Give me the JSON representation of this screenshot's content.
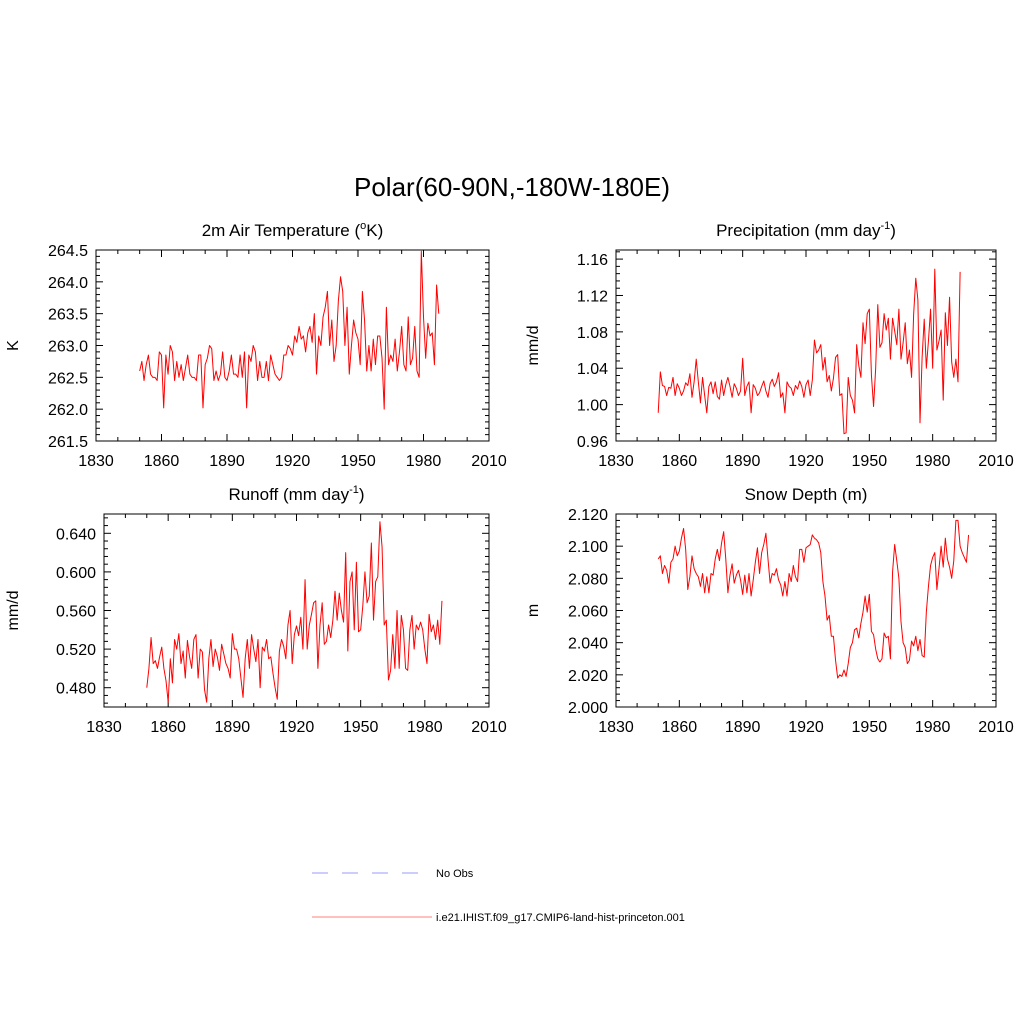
{
  "figure": {
    "title": "Polar(60-90N,-180W-180E)"
  },
  "legend": {
    "items": [
      {
        "label": "No Obs",
        "color": "#9999ff",
        "dash": "dashed"
      },
      {
        "label": "i.e21.IHIST.f09_g17.CMIP6-land-hist-princeton.001",
        "color": "#ff8080",
        "dash": "solid"
      }
    ]
  },
  "chart_data": [
    {
      "type": "line",
      "title": "2m Air Temperature (",
      "title_sup": "o",
      "title_tail": "K)",
      "ylabel": "K",
      "xlim": [
        1830,
        2010
      ],
      "ylim": [
        261.5,
        264.5
      ],
      "xticks": [
        1830,
        1860,
        1890,
        1920,
        1950,
        1980,
        2010
      ],
      "yticks": [
        261.5,
        262.0,
        262.5,
        263.0,
        263.5,
        264.0,
        264.5
      ],
      "ytick_labels": [
        "261.5",
        "262.0",
        "262.5",
        "263.0",
        "263.5",
        "264.0",
        "264.5"
      ],
      "grid": false,
      "series": [
        {
          "color": "#ff0000",
          "x_start": 1850,
          "x_step": 1,
          "values": [
            262.6,
            262.75,
            262.45,
            262.7,
            262.85,
            262.55,
            262.5,
            262.5,
            262.45,
            262.9,
            262.85,
            262.02,
            262.85,
            262.55,
            263.0,
            262.9,
            262.45,
            262.75,
            262.5,
            262.7,
            262.45,
            262.65,
            262.85,
            262.55,
            262.5,
            262.5,
            262.45,
            262.85,
            262.85,
            262.02,
            262.7,
            262.8,
            263.0,
            262.95,
            262.45,
            262.6,
            262.45,
            262.55,
            262.9,
            262.5,
            262.45,
            262.6,
            262.85,
            262.55,
            262.55,
            262.5,
            262.85,
            262.5,
            262.9,
            262.02,
            262.85,
            262.75,
            263.0,
            262.9,
            262.45,
            262.75,
            262.5,
            262.5,
            262.75,
            262.45,
            262.85,
            262.7,
            262.55,
            262.5,
            262.45,
            262.5,
            262.85,
            262.85,
            263.0,
            262.95,
            262.85,
            263.15,
            263.05,
            263.3,
            263.1,
            263.15,
            262.9,
            263.2,
            263.3,
            263.05,
            263.5,
            262.55,
            263.15,
            263.0,
            263.45,
            263.6,
            263.85,
            263.0,
            263.4,
            262.75,
            263.0,
            263.7,
            264.08,
            263.85,
            263.0,
            263.6,
            262.55,
            263.0,
            263.4,
            263.2,
            263.1,
            262.7,
            263.85,
            263.4,
            262.6,
            263.0,
            262.6,
            263.1,
            262.7,
            263.15,
            263.15,
            262.8,
            262.0,
            263.6,
            262.7,
            262.85,
            262.75,
            263.1,
            262.6,
            262.9,
            263.3,
            262.7,
            262.6,
            263.45,
            262.7,
            262.8,
            263.3,
            262.6,
            262.5,
            264.48,
            263.45,
            262.8,
            263.35,
            263.15,
            263.2,
            262.7,
            263.95,
            263.5
          ]
        }
      ]
    },
    {
      "type": "line",
      "title": "Precipitation (mm day",
      "title_sup": "-1",
      "title_tail": ")",
      "ylabel": "mm/d",
      "xlim": [
        1830,
        2010
      ],
      "ylim": [
        0.96,
        1.17
      ],
      "xticks": [
        1830,
        1860,
        1890,
        1920,
        1950,
        1980,
        2010
      ],
      "yticks": [
        0.96,
        1.0,
        1.04,
        1.08,
        1.12,
        1.16
      ],
      "ytick_labels": [
        "0.96",
        "1.00",
        "1.04",
        "1.08",
        "1.12",
        "1.16"
      ],
      "grid": false,
      "series": [
        {
          "color": "#ff0000",
          "x_start": 1850,
          "x_step": 1,
          "values": [
            0.991,
            1.036,
            1.021,
            1.02,
            1.01,
            1.019,
            1.018,
            1.03,
            1.01,
            1.023,
            1.018,
            1.01,
            1.015,
            1.024,
            1.021,
            1.034,
            1.008,
            1.025,
            1.05,
            1.025,
            1.002,
            1.03,
            1.01,
            0.991,
            1.02,
            1.025,
            1.012,
            1.025,
            1.009,
            1.006,
            1.027,
            1.01,
            1.022,
            1.03,
            1.02,
            1.008,
            1.023,
            1.018,
            1.01,
            1.015,
            1.051,
            1.01,
            1.02,
            1.025,
            0.991,
            1.022,
            1.018,
            1.01,
            1.013,
            1.02,
            1.026,
            1.015,
            1.008,
            1.023,
            1.028,
            1.02,
            1.025,
            1.035,
            1.008,
            1.013,
            0.991,
            1.025,
            1.02,
            1.018,
            1.01,
            1.021,
            1.017,
            1.026,
            1.02,
            1.008,
            1.022,
            1.027,
            1.01,
            1.027,
            1.071,
            1.057,
            1.06,
            1.066,
            1.038,
            1.052,
            1.025,
            1.032,
            1.015,
            1.029,
            1.052,
            1.055,
            1.01,
            1.012,
            0.968,
            0.969,
            1.03,
            1.01,
            1.005,
            0.991,
            1.066,
            1.043,
            1.03,
            1.09,
            1.067,
            1.1,
            1.105,
            1.032,
            0.998,
            1.04,
            1.11,
            1.063,
            1.068,
            1.1,
            1.082,
            1.095,
            1.05,
            1.095,
            1.081,
            1.066,
            1.105,
            1.05,
            1.068,
            1.09,
            1.045,
            1.06,
            1.03,
            1.1,
            1.139,
            1.115,
            0.98,
            1.052,
            1.094,
            1.04,
            1.07,
            1.105,
            1.04,
            1.149,
            1.06,
            1.07,
            1.082,
            1.005,
            1.101,
            1.065,
            1.118,
            1.047,
            1.03,
            1.05,
            1.025,
            1.146
          ]
        }
      ]
    },
    {
      "type": "line",
      "title": "Runoff (mm day",
      "title_sup": "-1",
      "title_tail": ")",
      "ylabel": "mm/d",
      "xlim": [
        1830,
        2010
      ],
      "ylim": [
        0.46,
        0.66
      ],
      "xticks": [
        1830,
        1860,
        1890,
        1920,
        1950,
        1980,
        2010
      ],
      "yticks": [
        0.48,
        0.52,
        0.56,
        0.6,
        0.64
      ],
      "ytick_labels": [
        "0.480",
        "0.520",
        "0.560",
        "0.600",
        "0.640"
      ],
      "grid": false,
      "series": [
        {
          "color": "#ff0000",
          "x_start": 1850,
          "x_step": 1,
          "values": [
            0.48,
            0.5,
            0.532,
            0.505,
            0.508,
            0.5,
            0.512,
            0.522,
            0.5,
            0.487,
            0.465,
            0.51,
            0.485,
            0.53,
            0.52,
            0.536,
            0.505,
            0.518,
            0.49,
            0.529,
            0.512,
            0.5,
            0.53,
            0.535,
            0.49,
            0.52,
            0.517,
            0.478,
            0.465,
            0.51,
            0.53,
            0.502,
            0.52,
            0.512,
            0.498,
            0.525,
            0.515,
            0.505,
            0.5,
            0.49,
            0.536,
            0.52,
            0.52,
            0.51,
            0.49,
            0.47,
            0.51,
            0.53,
            0.5,
            0.535,
            0.52,
            0.507,
            0.53,
            0.48,
            0.522,
            0.518,
            0.53,
            0.51,
            0.512,
            0.495,
            0.48,
            0.468,
            0.518,
            0.53,
            0.523,
            0.51,
            0.545,
            0.56,
            0.505,
            0.535,
            0.544,
            0.534,
            0.553,
            0.52,
            0.592,
            0.52,
            0.545,
            0.556,
            0.568,
            0.57,
            0.5,
            0.545,
            0.568,
            0.525,
            0.528,
            0.545,
            0.532,
            0.55,
            0.58,
            0.55,
            0.578,
            0.56,
            0.548,
            0.62,
            0.518,
            0.59,
            0.6,
            0.54,
            0.61,
            0.538,
            0.54,
            0.565,
            0.6,
            0.568,
            0.575,
            0.63,
            0.55,
            0.59,
            0.595,
            0.652,
            0.626,
            0.545,
            0.55,
            0.488,
            0.498,
            0.535,
            0.5,
            0.56,
            0.5,
            0.555,
            0.54,
            0.5,
            0.498,
            0.54,
            0.555,
            0.52,
            0.545,
            0.54,
            0.548,
            0.54,
            0.52,
            0.505,
            0.556,
            0.538,
            0.545,
            0.53,
            0.55,
            0.525,
            0.57
          ]
        }
      ]
    },
    {
      "type": "line",
      "title": "Snow Depth (m)",
      "title_sup": "",
      "title_tail": "",
      "ylabel": "m",
      "xlim": [
        1830,
        2010
      ],
      "ylim": [
        2.0,
        2.12
      ],
      "xticks": [
        1830,
        1860,
        1890,
        1920,
        1950,
        1980,
        2010
      ],
      "yticks": [
        2.0,
        2.02,
        2.04,
        2.06,
        2.08,
        2.1,
        2.12
      ],
      "ytick_labels": [
        "2.000",
        "2.020",
        "2.040",
        "2.060",
        "2.080",
        "2.100",
        "2.120"
      ],
      "grid": false,
      "series": [
        {
          "color": "#ff0000",
          "x_start": 1850,
          "x_step": 1,
          "values": [
            2.092,
            2.094,
            2.083,
            2.088,
            2.085,
            2.077,
            2.09,
            2.092,
            2.1,
            2.094,
            2.097,
            2.105,
            2.111,
            2.098,
            2.073,
            2.081,
            2.094,
            2.086,
            2.083,
            2.081,
            2.075,
            2.083,
            2.071,
            2.081,
            2.071,
            2.083,
            2.082,
            2.092,
            2.098,
            2.091,
            2.102,
            2.109,
            2.092,
            2.071,
            2.082,
            2.089,
            2.077,
            2.082,
            2.085,
            2.079,
            2.07,
            2.082,
            2.071,
            2.083,
            2.069,
            2.079,
            2.09,
            2.099,
            2.083,
            2.096,
            2.101,
            2.108,
            2.092,
            2.077,
            2.083,
            2.082,
            2.086,
            2.079,
            2.076,
            2.069,
            2.078,
            2.069,
            2.083,
            2.078,
            2.088,
            2.081,
            2.078,
            2.098,
            2.098,
            2.09,
            2.099,
            2.1,
            2.101,
            2.107,
            2.105,
            2.104,
            2.102,
            2.096,
            2.078,
            2.069,
            2.054,
            2.057,
            2.044,
            2.044,
            2.029,
            2.018,
            2.02,
            2.019,
            2.023,
            2.019,
            2.027,
            2.037,
            2.04,
            2.048,
            2.049,
            2.043,
            2.052,
            2.059,
            2.069,
            2.059,
            2.07,
            2.047,
            2.045,
            2.036,
            2.03,
            2.028,
            2.03,
            2.046,
            2.043,
            2.044,
            2.03,
            2.084,
            2.101,
            2.091,
            2.08,
            2.053,
            2.04,
            2.037,
            2.027,
            2.029,
            2.041,
            2.038,
            2.044,
            2.035,
            2.042,
            2.032,
            2.031,
            2.059,
            2.075,
            2.088,
            2.093,
            2.096,
            2.073,
            2.086,
            2.1,
            2.087,
            2.105,
            2.092,
            2.087,
            2.08,
            2.091,
            2.116,
            2.116,
            2.1,
            2.096,
            2.093,
            2.09,
            2.107
          ]
        }
      ]
    }
  ]
}
